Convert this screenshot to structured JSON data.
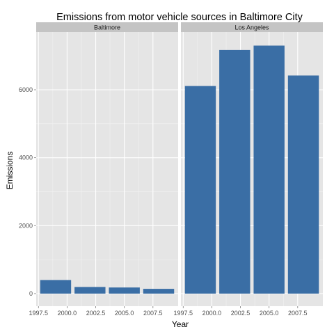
{
  "chart_data": {
    "type": "bar",
    "title": "Emissions from motor vehicle sources in Baltimore City",
    "xlabel": "Year",
    "ylabel": "Emissions",
    "x_ticks": [
      1997.5,
      2000.0,
      2002.5,
      2005.0,
      2007.5
    ],
    "x_tick_labels": [
      "1997.5",
      "2000.0",
      "2002.5",
      "2005.0",
      "2007.5"
    ],
    "y_ticks": [
      0,
      2000,
      4000,
      6000
    ],
    "y_tick_labels": [
      "0",
      "2000",
      "4000",
      "6000"
    ],
    "xlim": [
      1997.3,
      2009.7
    ],
    "ylim": [
      -370,
      7700
    ],
    "bar_width_years": 2.7,
    "grid": true,
    "legend": "none",
    "colors": {
      "bar": "#3a6ea5",
      "panel_background": "#e5e5e5",
      "strip_background": "#c4c4c4",
      "grid_major": "#ffffff",
      "grid_minor": "#f2f2f2"
    },
    "facets": [
      {
        "label": "Baltimore",
        "x": [
          1999,
          2002,
          2005,
          2008
        ],
        "values": [
          400,
          195,
          180,
          140
        ]
      },
      {
        "label": "Los Angeles",
        "x": [
          1999,
          2002,
          2005,
          2008
        ],
        "values": [
          6110,
          7170,
          7300,
          6420
        ]
      }
    ]
  }
}
